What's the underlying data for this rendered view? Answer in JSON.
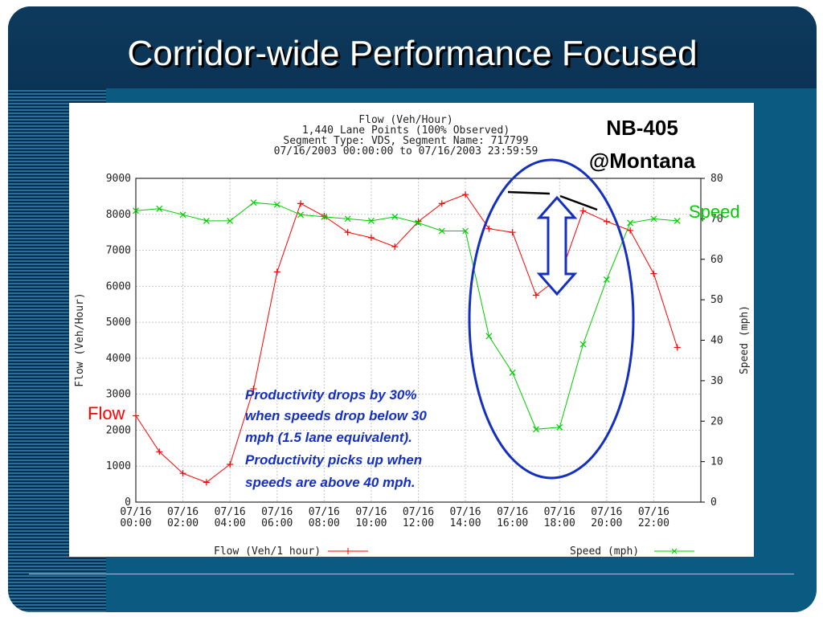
{
  "slide": {
    "title": "Corridor-wide Performance Focused",
    "location_line1": "NB-405",
    "location_line2": "@Montana",
    "flow_callout": "Flow",
    "speed_callout": "Speed",
    "annotation_lines": [
      "Productivity drops by 30%",
      "when speeds drop below 30",
      "mph (1.5 lane equivalent).",
      "Productivity picks up when",
      "speeds are above 40 mph."
    ],
    "colors": {
      "flow": "#ff0000",
      "speed": "#00cc00",
      "ellipse": "#1530c0",
      "arrow": "#1530c0",
      "background": "#0a5a82"
    }
  },
  "chart_data": {
    "type": "line",
    "title_lines": [
      "Flow (Veh/Hour)",
      "1,440 Lane Points (100% Observed)",
      "Segment Type: VDS, Segment Name: 717799",
      "07/16/2003 00:00:00 to 07/16/2003 23:59:59"
    ],
    "x": [
      "00:00",
      "01:00",
      "02:00",
      "03:00",
      "04:00",
      "05:00",
      "06:00",
      "07:00",
      "08:00",
      "09:00",
      "10:00",
      "11:00",
      "12:00",
      "13:00",
      "14:00",
      "15:00",
      "16:00",
      "17:00",
      "18:00",
      "19:00",
      "20:00",
      "21:00",
      "22:00",
      "23:00"
    ],
    "xtick_labels": [
      [
        "07/16",
        "00:00"
      ],
      [
        "07/16",
        "02:00"
      ],
      [
        "07/16",
        "04:00"
      ],
      [
        "07/16",
        "06:00"
      ],
      [
        "07/16",
        "08:00"
      ],
      [
        "07/16",
        "10:00"
      ],
      [
        "07/16",
        "12:00"
      ],
      [
        "07/16",
        "14:00"
      ],
      [
        "07/16",
        "16:00"
      ],
      [
        "07/16",
        "18:00"
      ],
      [
        "07/16",
        "20:00"
      ],
      [
        "07/16",
        "22:00"
      ]
    ],
    "ylabel": "Flow (Veh/Hour)",
    "y2label": "Speed (mph)",
    "ylim": [
      0,
      9000
    ],
    "y2lim": [
      0,
      80
    ],
    "yticks": [
      "0",
      "1000",
      "2000",
      "3000",
      "4000",
      "5000",
      "6000",
      "7000",
      "8000",
      "9000"
    ],
    "y2ticks": [
      "0",
      "10",
      "20",
      "30",
      "40",
      "50",
      "60",
      "70",
      "80"
    ],
    "grid": true,
    "series": [
      {
        "name": "Flow (Veh/1 hour)",
        "axis": "left",
        "values": [
          2400,
          1400,
          800,
          550,
          1050,
          3150,
          6400,
          8300,
          7950,
          7500,
          7350,
          7100,
          7800,
          8300,
          8550,
          7600,
          7500,
          5750,
          6250,
          8100,
          7800,
          7550,
          6350,
          4300
        ]
      },
      {
        "name": "Speed (mph)",
        "axis": "right",
        "values": [
          72,
          72.5,
          71,
          69.5,
          69.5,
          74,
          73.5,
          71,
          70.5,
          70,
          69.5,
          70.5,
          69,
          67,
          67,
          41,
          32,
          18,
          18.5,
          39,
          55,
          69,
          70,
          69.5
        ]
      }
    ],
    "legend": "bottom"
  }
}
